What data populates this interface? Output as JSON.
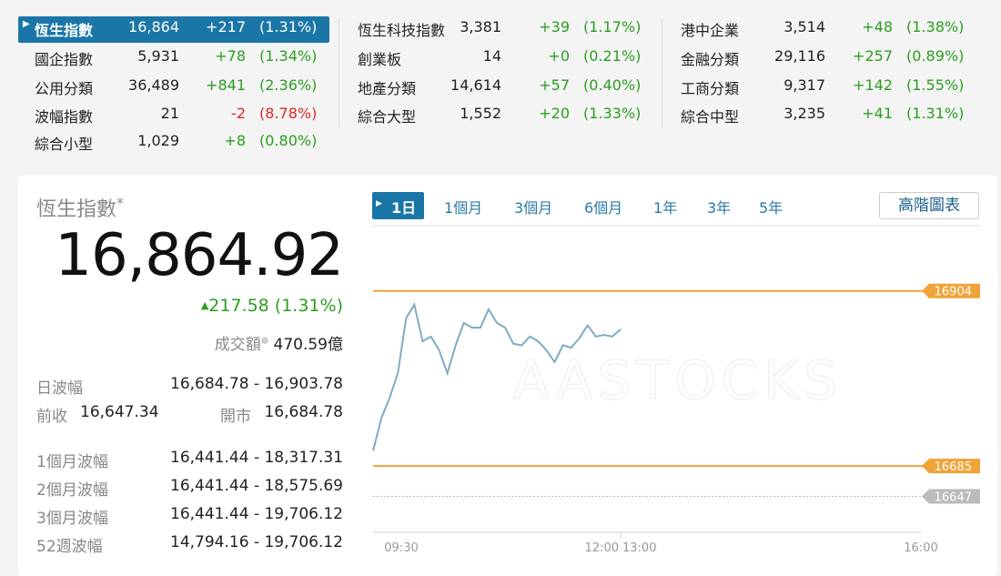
{
  "tickers": [
    {
      "name": "恆生指數",
      "price": "16,864",
      "change": "+217",
      "pct": "(1.31%)"
    },
    {
      "name": "國企指數",
      "price": "5,931",
      "change": "+78",
      "pct": "(1.34%)"
    },
    {
      "name": "公用分類",
      "price": "36,489",
      "change": "+841",
      "pct": "(2.36%)"
    },
    {
      "name": "波幅指數",
      "price": "21",
      "change": "-2",
      "pct": "(8.78%)"
    },
    {
      "name": "綜合小型",
      "price": "1,029",
      "change": "+8",
      "pct": "(0.80%)"
    },
    {
      "name": "恆生科技指數",
      "price": "3,381",
      "change": "+39",
      "pct": "(1.17%)"
    },
    {
      "name": "創業板",
      "price": "14",
      "change": "+0",
      "pct": "(0.21%)"
    },
    {
      "name": "地產分類",
      "price": "14,614",
      "change": "+57",
      "pct": "(0.40%)"
    },
    {
      "name": "綜合大型",
      "price": "1,552",
      "change": "+20",
      "pct": "(1.33%)"
    },
    {
      "name": "港中企業",
      "price": "3,514",
      "change": "+48",
      "pct": "(1.38%)"
    },
    {
      "name": "金融分類",
      "price": "29,116",
      "change": "+257",
      "pct": "(0.89%)"
    },
    {
      "name": "工商分類",
      "price": "9,317",
      "change": "+142",
      "pct": "(1.55%)"
    },
    {
      "name": "綜合中型",
      "price": "3,235",
      "change": "+41",
      "pct": "(1.31%)"
    }
  ],
  "quote": {
    "name": "恆生指數",
    "star": "*",
    "price": "16,864.92",
    "change": "217.58 (1.31%)",
    "turnover_label": "成交額",
    "turnover": "470.59億",
    "day_range_label": "日波幅",
    "day_range": "16,684.78 - 16,903.78",
    "prev_close_label": "前收",
    "prev_close": "16,647.34",
    "open_label": "開市",
    "open": "16,684.78",
    "ranges": [
      {
        "label": "1個月波幅",
        "value": "16,441.44 - 18,317.31"
      },
      {
        "label": "2個月波幅",
        "value": "16,441.44 - 18,575.69"
      },
      {
        "label": "3個月波幅",
        "value": "16,441.44 - 19,706.12"
      },
      {
        "label": "52週波幅",
        "value": "14,794.16 - 19,706.12"
      }
    ]
  },
  "tabs": [
    "1日",
    "1個月",
    "3個月",
    "6個月",
    "1年",
    "3年",
    "5年"
  ],
  "advanced_button": "高階圖表",
  "watermark": "AASTOCKS",
  "chart_data": {
    "type": "line",
    "color": "#7fabc4",
    "x": [
      "09:30",
      "09:35",
      "09:40",
      "09:45",
      "09:50",
      "09:55",
      "10:00",
      "10:05",
      "10:10",
      "10:15",
      "10:20",
      "10:25",
      "10:30",
      "10:35",
      "10:40",
      "10:45",
      "10:50",
      "10:55",
      "11:00",
      "11:05",
      "11:10",
      "11:15",
      "11:20",
      "11:25",
      "11:30",
      "11:35",
      "11:40",
      "11:45",
      "11:50",
      "11:55",
      "12:00"
    ],
    "values": [
      16704,
      16745,
      16770,
      16801,
      16870,
      16887,
      16841,
      16847,
      16830,
      16801,
      16836,
      16864,
      16858,
      16858,
      16881,
      16864,
      16858,
      16838,
      16836,
      16847,
      16841,
      16830,
      16815,
      16836,
      16833,
      16845,
      16861,
      16847,
      16849,
      16847,
      16856
    ],
    "ylim": [
      16602,
      16972
    ],
    "xticks": [
      "09:30",
      "12:00",
      "13:00",
      "16:00"
    ],
    "hlines": [
      {
        "value": 16904,
        "color": "#f0a338"
      },
      {
        "value": 16685,
        "color": "#f0a338"
      },
      {
        "value": 16647,
        "color": "#bbbbbb"
      }
    ]
  }
}
